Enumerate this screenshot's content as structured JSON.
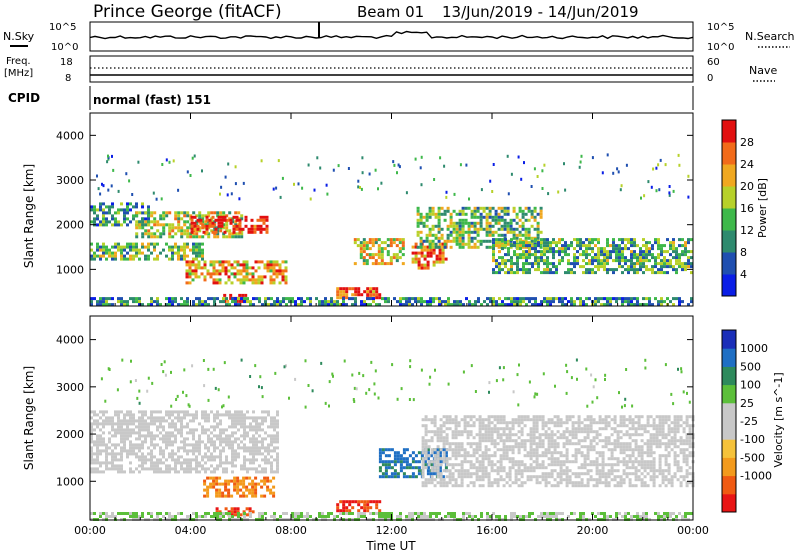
{
  "header": {
    "station": "Prince George (fitACF)",
    "beam": "Beam 01",
    "date_range": "13/Jun/2019 - 14/Jun/2019"
  },
  "noise_panel": {
    "left_label": "N.Sky",
    "right_label": "N.Search",
    "y_top": "10^5",
    "y_bottom": "10^0",
    "y2_top": "10^5",
    "y2_bottom": "10^0"
  },
  "freq_panel": {
    "left_label": "Freq.",
    "unit": "[MHz]",
    "y_top": "18",
    "y_bottom": "8",
    "right_label": "Nave",
    "y2_top": "60",
    "y2_bottom": "0"
  },
  "cpid_panel": {
    "label": "CPID",
    "value": "normal (fast) 151"
  },
  "colors": {
    "power_scale": [
      "#0a1ee6",
      "#1f4fb0",
      "#2e8a6e",
      "#3eb84a",
      "#b7d12a",
      "#f0a820",
      "#f26b1a",
      "#e21010"
    ],
    "velocity_scale": [
      "#e81515",
      "#f05a12",
      "#f39a1c",
      "#f5c23a",
      "#c8c8c8",
      "#c8c8c8",
      "#5cbf3a",
      "#2e8a5c",
      "#1f6fc4",
      "#1a2eb8"
    ]
  },
  "chart_data": [
    {
      "type": "heatmap",
      "title": "",
      "xlabel": "",
      "ylabel": "Slant Range [km]",
      "xlim": [
        "00:00",
        "24:00"
      ],
      "ylim": [
        180,
        4500
      ],
      "y_ticks": [
        "1000",
        "2000",
        "3000",
        "4000"
      ],
      "colorbar_label": "Power [dB]",
      "colorbar_ticks": [
        "4",
        "8",
        "12",
        "16",
        "20",
        "24",
        "28"
      ],
      "bands": [
        {
          "start_h": 0.0,
          "end_h": 2.3,
          "range_km": [
            2000,
            2500
          ],
          "level": 0.35
        },
        {
          "start_h": 0.0,
          "end_h": 4.5,
          "range_km": [
            1200,
            1600
          ],
          "level": 0.45
        },
        {
          "start_h": 1.8,
          "end_h": 6.0,
          "range_km": [
            1700,
            2300
          ],
          "level": 0.55
        },
        {
          "start_h": 4.0,
          "end_h": 7.0,
          "range_km": [
            1800,
            2200
          ],
          "level": 0.95
        },
        {
          "start_h": 3.8,
          "end_h": 7.8,
          "range_km": [
            700,
            1200
          ],
          "level": 0.7
        },
        {
          "start_h": 5.3,
          "end_h": 6.2,
          "range_km": [
            250,
            450
          ],
          "level": 0.9
        },
        {
          "start_h": 9.8,
          "end_h": 11.5,
          "range_km": [
            350,
            600
          ],
          "level": 0.85
        },
        {
          "start_h": 10.5,
          "end_h": 12.5,
          "range_km": [
            1100,
            1700
          ],
          "level": 0.6
        },
        {
          "start_h": 12.8,
          "end_h": 14.2,
          "range_km": [
            1000,
            1600
          ],
          "level": 0.75
        },
        {
          "start_h": 13.0,
          "end_h": 18.0,
          "range_km": [
            1500,
            2400
          ],
          "level": 0.45
        },
        {
          "start_h": 16.0,
          "end_h": 24.0,
          "range_km": [
            900,
            1700
          ],
          "level": 0.4
        },
        {
          "start_h": 0.0,
          "end_h": 24.0,
          "range_km": [
            180,
            380
          ],
          "level": 0.3
        }
      ]
    },
    {
      "type": "heatmap",
      "title": "",
      "xlabel": "Time UT",
      "ylabel": "Slant Range [km]",
      "xlim": [
        "00:00",
        "24:00"
      ],
      "ylim": [
        180,
        4500
      ],
      "x_ticks": [
        "00:00",
        "04:00",
        "08:00",
        "12:00",
        "16:00",
        "20:00",
        "00:00"
      ],
      "y_ticks": [
        "1000",
        "2000",
        "3000",
        "4000"
      ],
      "colorbar_label": "Velocity [m s^-1]",
      "colorbar_ticks": [
        "1000",
        "500",
        "100",
        "25",
        "-25",
        "-100",
        "-500",
        "-1000"
      ],
      "bands": [
        {
          "start_h": 0.0,
          "end_h": 7.5,
          "range_km": [
            1200,
            2500
          ],
          "level": 0.0
        },
        {
          "start_h": 4.5,
          "end_h": 7.3,
          "range_km": [
            700,
            1100
          ],
          "level": -0.55
        },
        {
          "start_h": 5.0,
          "end_h": 6.5,
          "range_km": [
            300,
            450
          ],
          "level": -0.75
        },
        {
          "start_h": 9.8,
          "end_h": 11.5,
          "range_km": [
            350,
            600
          ],
          "level": -0.8
        },
        {
          "start_h": 11.5,
          "end_h": 14.2,
          "range_km": [
            1100,
            1700
          ],
          "level": 0.65
        },
        {
          "start_h": 13.2,
          "end_h": 24.0,
          "range_km": [
            900,
            2400
          ],
          "level": 0.0
        },
        {
          "start_h": 0.0,
          "end_h": 24.0,
          "range_km": [
            180,
            350
          ],
          "level": 0.2
        }
      ]
    }
  ]
}
